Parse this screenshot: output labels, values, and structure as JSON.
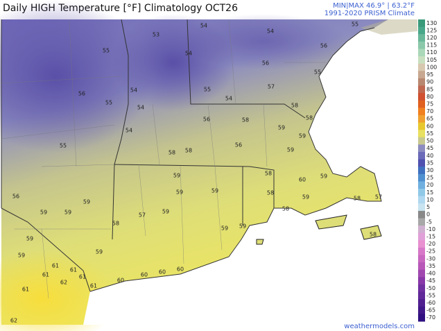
{
  "header": {
    "title": "Daily HIGH Temperature [°F]  Climatology OCT26",
    "minmax": "MIN|MAX 46.9° | 63.2°F",
    "source": "1991-2020 PRISM Climate"
  },
  "colorbar": {
    "labels": [
      130,
      125,
      120,
      115,
      110,
      105,
      100,
      95,
      90,
      85,
      80,
      75,
      70,
      65,
      60,
      55,
      50,
      45,
      40,
      35,
      30,
      25,
      20,
      15,
      10,
      5,
      0,
      -5,
      -10,
      -15,
      -20,
      -25,
      -30,
      -35,
      -40,
      -45,
      -50,
      -55,
      -60,
      -65,
      -70
    ]
  },
  "map": {
    "labels": [
      53,
      54,
      54,
      55,
      55,
      54,
      56,
      56,
      55,
      56,
      54,
      55,
      57,
      54,
      54,
      55,
      58,
      58,
      56,
      58,
      59,
      54,
      59,
      56,
      58,
      58,
      59,
      55,
      59,
      58,
      60,
      59,
      59,
      59,
      58,
      56,
      59,
      59,
      58,
      57,
      58,
      59,
      59,
      58,
      57,
      59,
      59,
      59,
      58,
      59,
      59,
      59,
      61,
      61,
      61,
      62,
      61,
      60,
      60,
      60,
      60,
      61,
      61,
      62
    ]
  },
  "footer": {
    "watermark": "weathermodels.com"
  }
}
